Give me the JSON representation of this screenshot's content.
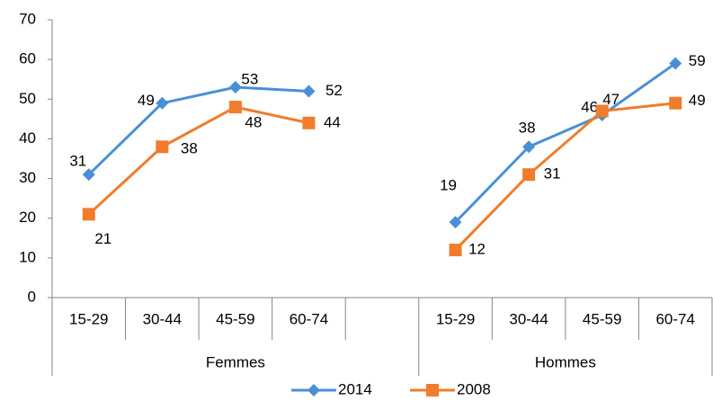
{
  "chart_data": {
    "type": "line",
    "categories": [
      "15-29",
      "30-44",
      "45-59",
      "60-74",
      null,
      "15-29",
      "30-44",
      "45-59",
      "60-74"
    ],
    "groups": [
      "Femmes",
      "Hommes"
    ],
    "series": [
      {
        "name": "2014",
        "color": "#4a8fd6",
        "marker": "diamond",
        "values": [
          31,
          49,
          53,
          52,
          null,
          19,
          38,
          46,
          59
        ]
      },
      {
        "name": "2008",
        "color": "#f07c2c",
        "marker": "square",
        "values": [
          21,
          38,
          48,
          44,
          null,
          12,
          31,
          47,
          49
        ]
      }
    ],
    "ylim": [
      0,
      70
    ],
    "yticks": [
      0,
      10,
      20,
      30,
      40,
      50,
      60,
      70
    ],
    "grid": false,
    "legend": "bottom"
  }
}
